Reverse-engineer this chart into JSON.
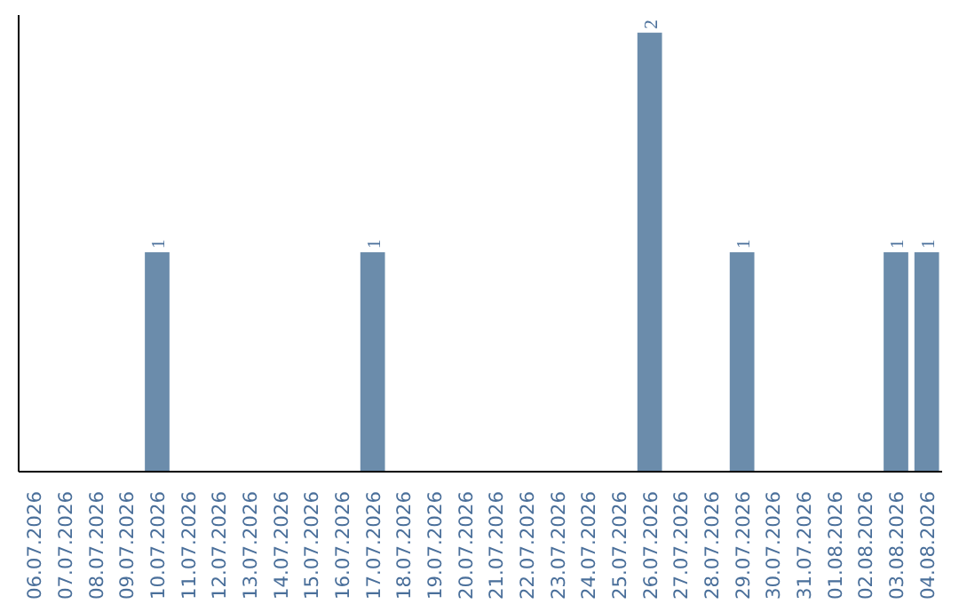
{
  "chart_data": {
    "type": "bar",
    "categories": [
      "06.07.2026",
      "07.07.2026",
      "08.07.2026",
      "09.07.2026",
      "10.07.2026",
      "11.07.2026",
      "12.07.2026",
      "13.07.2026",
      "14.07.2026",
      "15.07.2026",
      "16.07.2026",
      "17.07.2026",
      "18.07.2026",
      "19.07.2026",
      "20.07.2026",
      "21.07.2026",
      "22.07.2026",
      "23.07.2026",
      "24.07.2026",
      "25.07.2026",
      "26.07.2026",
      "27.07.2026",
      "28.07.2026",
      "29.07.2026",
      "30.07.2026",
      "31.07.2026",
      "01.08.2026",
      "02.08.2026",
      "03.08.2026",
      "04.08.2026"
    ],
    "values": [
      0,
      0,
      0,
      0,
      1,
      0,
      0,
      0,
      0,
      0,
      0,
      1,
      0,
      0,
      0,
      0,
      0,
      0,
      0,
      0,
      2,
      0,
      0,
      1,
      0,
      0,
      0,
      0,
      1,
      1
    ],
    "value_labels": [
      null,
      null,
      null,
      null,
      "1",
      null,
      null,
      null,
      null,
      null,
      null,
      "1",
      null,
      null,
      null,
      null,
      null,
      null,
      null,
      null,
      "2",
      null,
      null,
      "1",
      null,
      null,
      null,
      null,
      "1",
      "1"
    ],
    "color": "#6b8cab"
  }
}
